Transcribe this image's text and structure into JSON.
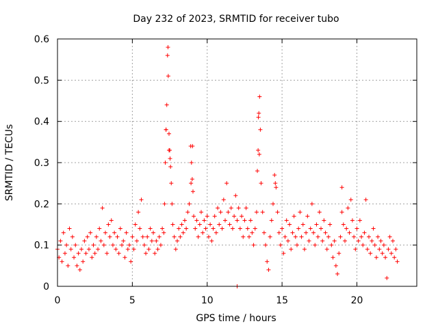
{
  "chart_data": {
    "type": "scatter",
    "title": "Day 232 of 2023, SRMTID for receiver tubo",
    "xlabel": "GPS time / hours",
    "ylabel": "SRMTID / TECUs",
    "xlim": [
      0,
      24
    ],
    "ylim": [
      0,
      0.6
    ],
    "xticks": [
      0,
      5,
      10,
      15,
      20
    ],
    "xtick_labels": [
      "0",
      "5",
      "10",
      "15",
      "20"
    ],
    "yticks": [
      0,
      0.1,
      0.2,
      0.3,
      0.4,
      0.5,
      0.6
    ],
    "ytick_labels": [
      "0",
      "0.1",
      "0.2",
      "0.3",
      "0.4",
      "0.5",
      "0.6"
    ],
    "grid": true,
    "marker": "+",
    "color": "#ff0000",
    "series": [
      {
        "name": "SRMTID",
        "points": [
          [
            0.0,
            0.09
          ],
          [
            0.1,
            0.07
          ],
          [
            0.2,
            0.11
          ],
          [
            0.3,
            0.06
          ],
          [
            0.4,
            0.13
          ],
          [
            0.5,
            0.08
          ],
          [
            0.6,
            0.1
          ],
          [
            0.7,
            0.05
          ],
          [
            0.8,
            0.14
          ],
          [
            0.9,
            0.09
          ],
          [
            1.0,
            0.12
          ],
          [
            1.1,
            0.07
          ],
          [
            1.2,
            0.1
          ],
          [
            1.3,
            0.05
          ],
          [
            1.4,
            0.08
          ],
          [
            1.5,
            0.04
          ],
          [
            1.6,
            0.09
          ],
          [
            1.7,
            0.06
          ],
          [
            1.8,
            0.11
          ],
          [
            1.9,
            0.08
          ],
          [
            2.0,
            0.12
          ],
          [
            2.1,
            0.09
          ],
          [
            2.2,
            0.13
          ],
          [
            2.3,
            0.07
          ],
          [
            2.4,
            0.1
          ],
          [
            2.5,
            0.08
          ],
          [
            2.6,
            0.12
          ],
          [
            2.7,
            0.09
          ],
          [
            2.8,
            0.14
          ],
          [
            2.9,
            0.11
          ],
          [
            3.0,
            0.19
          ],
          [
            3.1,
            0.1
          ],
          [
            3.2,
            0.13
          ],
          [
            3.3,
            0.08
          ],
          [
            3.4,
            0.15
          ],
          [
            3.5,
            0.12
          ],
          [
            3.6,
            0.16
          ],
          [
            3.7,
            0.1
          ],
          [
            3.8,
            0.13
          ],
          [
            3.9,
            0.09
          ],
          [
            4.0,
            0.12
          ],
          [
            4.1,
            0.08
          ],
          [
            4.2,
            0.14
          ],
          [
            4.3,
            0.1
          ],
          [
            4.4,
            0.11
          ],
          [
            4.5,
            0.07
          ],
          [
            4.6,
            0.13
          ],
          [
            4.7,
            0.09
          ],
          [
            4.8,
            0.1
          ],
          [
            4.9,
            0.06
          ],
          [
            5.0,
            0.12
          ],
          [
            5.1,
            0.09
          ],
          [
            5.2,
            0.15
          ],
          [
            5.3,
            0.11
          ],
          [
            5.4,
            0.18
          ],
          [
            5.5,
            0.14
          ],
          [
            5.6,
            0.21
          ],
          [
            5.7,
            0.12
          ],
          [
            5.8,
            0.1
          ],
          [
            5.9,
            0.08
          ],
          [
            6.0,
            0.12
          ],
          [
            6.1,
            0.09
          ],
          [
            6.2,
            0.14
          ],
          [
            6.3,
            0.11
          ],
          [
            6.4,
            0.13
          ],
          [
            6.5,
            0.08
          ],
          [
            6.6,
            0.11
          ],
          [
            6.7,
            0.09
          ],
          [
            6.8,
            0.12
          ],
          [
            6.9,
            0.1
          ],
          [
            7.0,
            0.14
          ],
          [
            7.1,
            0.13
          ],
          [
            7.15,
            0.2
          ],
          [
            7.2,
            0.3
          ],
          [
            7.25,
            0.38
          ],
          [
            7.3,
            0.44
          ],
          [
            7.35,
            0.56
          ],
          [
            7.38,
            0.58
          ],
          [
            7.4,
            0.51
          ],
          [
            7.45,
            0.37
          ],
          [
            7.5,
            0.33
          ],
          [
            7.55,
            0.29
          ],
          [
            7.6,
            0.25
          ],
          [
            7.65,
            0.2
          ],
          [
            7.7,
            0.15
          ],
          [
            7.8,
            0.12
          ],
          [
            7.9,
            0.09
          ],
          [
            8.0,
            0.11
          ],
          [
            8.1,
            0.14
          ],
          [
            8.2,
            0.12
          ],
          [
            8.3,
            0.15
          ],
          [
            8.4,
            0.13
          ],
          [
            8.5,
            0.16
          ],
          [
            8.6,
            0.14
          ],
          [
            8.7,
            0.18
          ],
          [
            8.8,
            0.2
          ],
          [
            8.9,
            0.34
          ],
          [
            8.95,
            0.3
          ],
          [
            9.0,
            0.26
          ],
          [
            9.05,
            0.23
          ],
          [
            9.1,
            0.17
          ],
          [
            9.2,
            0.14
          ],
          [
            9.3,
            0.16
          ],
          [
            9.4,
            0.12
          ],
          [
            9.5,
            0.15
          ],
          [
            9.6,
            0.18
          ],
          [
            9.7,
            0.13
          ],
          [
            9.8,
            0.16
          ],
          [
            9.9,
            0.14
          ],
          [
            10.0,
            0.17
          ],
          [
            10.1,
            0.12
          ],
          [
            10.2,
            0.15
          ],
          [
            10.3,
            0.11
          ],
          [
            10.4,
            0.14
          ],
          [
            10.5,
            0.17
          ],
          [
            10.6,
            0.13
          ],
          [
            10.7,
            0.19
          ],
          [
            10.8,
            0.15
          ],
          [
            10.9,
            0.18
          ],
          [
            11.0,
            0.14
          ],
          [
            11.1,
            0.21
          ],
          [
            11.2,
            0.16
          ],
          [
            11.3,
            0.25
          ],
          [
            11.4,
            0.18
          ],
          [
            11.5,
            0.15
          ],
          [
            11.6,
            0.19
          ],
          [
            11.7,
            0.14
          ],
          [
            11.8,
            0.17
          ],
          [
            11.9,
            0.22
          ],
          [
            12.0,
            0.16
          ],
          [
            12.1,
            0.19
          ],
          [
            12.2,
            0.14
          ],
          [
            12.3,
            0.17
          ],
          [
            12.4,
            0.12
          ],
          [
            12.5,
            0.16
          ],
          [
            12.6,
            0.19
          ],
          [
            12.7,
            0.14
          ],
          [
            12.8,
            0.12
          ],
          [
            12.9,
            0.16
          ],
          [
            13.0,
            0.13
          ],
          [
            13.1,
            0.1
          ],
          [
            13.2,
            0.14
          ],
          [
            13.3,
            0.18
          ],
          [
            13.35,
            0.28
          ],
          [
            13.4,
            0.33
          ],
          [
            13.45,
            0.42
          ],
          [
            13.5,
            0.46
          ],
          [
            13.55,
            0.38
          ],
          [
            13.6,
            0.25
          ],
          [
            13.7,
            0.18
          ],
          [
            13.8,
            0.13
          ],
          [
            13.9,
            0.1
          ],
          [
            14.0,
            0.06
          ],
          [
            14.1,
            0.04
          ],
          [
            14.2,
            0.12
          ],
          [
            14.3,
            0.16
          ],
          [
            14.4,
            0.2
          ],
          [
            14.5,
            0.27
          ],
          [
            14.6,
            0.24
          ],
          [
            14.7,
            0.18
          ],
          [
            14.8,
            0.13
          ],
          [
            14.9,
            0.1
          ],
          [
            15.0,
            0.14
          ],
          [
            15.1,
            0.08
          ],
          [
            15.2,
            0.12
          ],
          [
            15.3,
            0.16
          ],
          [
            15.4,
            0.11
          ],
          [
            15.5,
            0.15
          ],
          [
            15.6,
            0.09
          ],
          [
            15.7,
            0.13
          ],
          [
            15.8,
            0.17
          ],
          [
            15.9,
            0.12
          ],
          [
            16.0,
            0.1
          ],
          [
            16.1,
            0.14
          ],
          [
            16.2,
            0.18
          ],
          [
            16.3,
            0.12
          ],
          [
            16.4,
            0.15
          ],
          [
            16.5,
            0.09
          ],
          [
            16.6,
            0.13
          ],
          [
            16.7,
            0.17
          ],
          [
            16.8,
            0.11
          ],
          [
            16.9,
            0.14
          ],
          [
            17.0,
            0.2
          ],
          [
            17.1,
            0.13
          ],
          [
            17.2,
            0.1
          ],
          [
            17.3,
            0.15
          ],
          [
            17.4,
            0.12
          ],
          [
            17.5,
            0.18
          ],
          [
            17.6,
            0.14
          ],
          [
            17.7,
            0.11
          ],
          [
            17.8,
            0.16
          ],
          [
            17.9,
            0.13
          ],
          [
            18.0,
            0.09
          ],
          [
            18.1,
            0.12
          ],
          [
            18.2,
            0.15
          ],
          [
            18.3,
            0.1
          ],
          [
            18.4,
            0.07
          ],
          [
            18.5,
            0.11
          ],
          [
            18.6,
            0.05
          ],
          [
            18.7,
            0.03
          ],
          [
            18.8,
            0.08
          ],
          [
            18.9,
            0.12
          ],
          [
            19.0,
            0.18
          ],
          [
            19.1,
            0.15
          ],
          [
            19.2,
            0.11
          ],
          [
            19.3,
            0.14
          ],
          [
            19.4,
            0.19
          ],
          [
            19.5,
            0.13
          ],
          [
            19.6,
            0.21
          ],
          [
            19.7,
            0.16
          ],
          [
            19.8,
            0.12
          ],
          [
            19.9,
            0.09
          ],
          [
            20.0,
            0.14
          ],
          [
            20.1,
            0.11
          ],
          [
            20.2,
            0.16
          ],
          [
            20.3,
            0.12
          ],
          [
            20.4,
            0.1
          ],
          [
            20.5,
            0.13
          ],
          [
            20.6,
            0.21
          ],
          [
            20.7,
            0.09
          ],
          [
            20.8,
            0.12
          ],
          [
            20.9,
            0.08
          ],
          [
            21.0,
            0.11
          ],
          [
            21.1,
            0.14
          ],
          [
            21.2,
            0.1
          ],
          [
            21.3,
            0.07
          ],
          [
            21.4,
            0.12
          ],
          [
            21.5,
            0.09
          ],
          [
            21.6,
            0.11
          ],
          [
            21.7,
            0.08
          ],
          [
            21.8,
            0.1
          ],
          [
            21.9,
            0.07
          ],
          [
            22.0,
            0.02
          ],
          [
            22.1,
            0.09
          ],
          [
            22.2,
            0.12
          ],
          [
            22.3,
            0.08
          ],
          [
            22.4,
            0.11
          ],
          [
            22.5,
            0.07
          ],
          [
            22.6,
            0.09
          ],
          [
            22.7,
            0.06
          ],
          [
            7.25,
            0.38
          ],
          [
            7.45,
            0.33
          ],
          [
            7.52,
            0.31
          ],
          [
            8.92,
            0.25
          ],
          [
            9.02,
            0.34
          ],
          [
            13.42,
            0.41
          ],
          [
            13.48,
            0.32
          ],
          [
            14.55,
            0.25
          ],
          [
            12.0,
            0.0
          ],
          [
            19.0,
            0.24
          ]
        ]
      }
    ]
  }
}
